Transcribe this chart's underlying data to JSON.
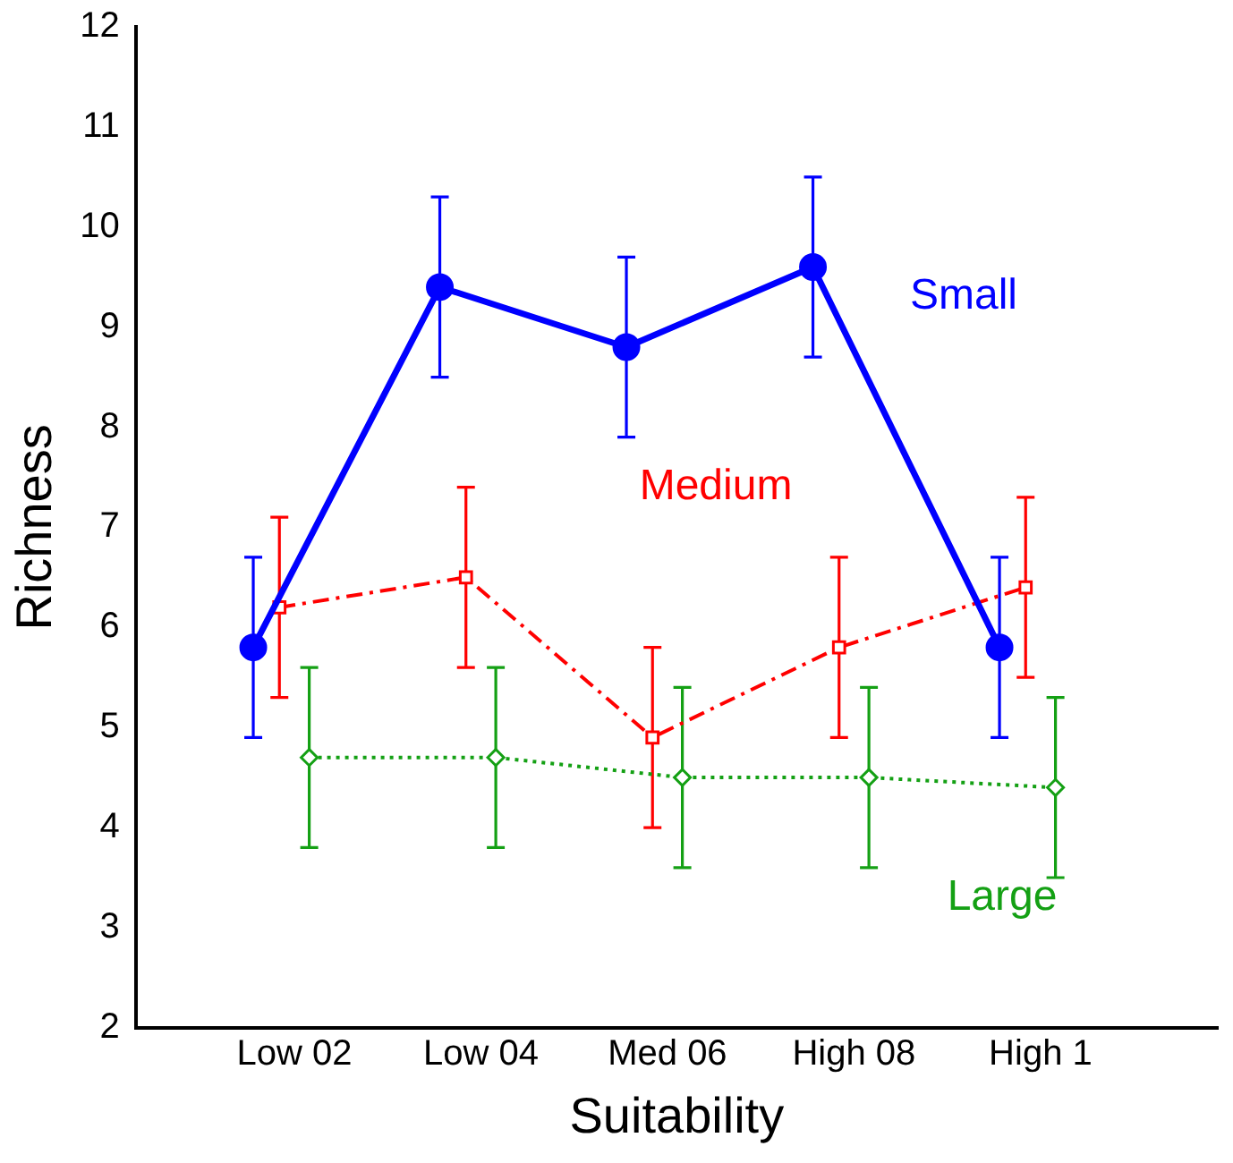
{
  "chart_data": {
    "type": "line",
    "xlabel": "Suitability",
    "ylabel": "Richness",
    "categories": [
      "Low 02",
      "Low 04",
      "Med 06",
      "High 08",
      "High 1"
    ],
    "series": [
      {
        "name": "Small",
        "color": "#0000ff",
        "values": [
          5.8,
          9.4,
          8.8,
          9.6,
          5.8
        ],
        "errors": [
          0.9,
          0.9,
          0.9,
          0.9,
          0.9
        ],
        "marker": "circle",
        "line_style": "solid"
      },
      {
        "name": "Medium",
        "color": "#ff0000",
        "values": [
          6.2,
          6.5,
          4.9,
          5.8,
          6.4
        ],
        "errors": [
          0.9,
          0.9,
          0.9,
          0.9,
          0.9
        ],
        "marker": "square",
        "line_style": "dashed"
      },
      {
        "name": "Large",
        "color": "#14a014",
        "values": [
          4.7,
          4.7,
          4.5,
          4.5,
          4.4
        ],
        "errors": [
          0.9,
          0.9,
          0.9,
          0.9,
          0.9
        ],
        "marker": "diamond",
        "line_style": "dotted"
      }
    ],
    "ylim": [
      2,
      12
    ],
    "yticks": [
      2,
      3,
      4,
      5,
      6,
      7,
      8,
      9,
      10,
      11,
      12
    ],
    "grid": false,
    "legend": false
  }
}
